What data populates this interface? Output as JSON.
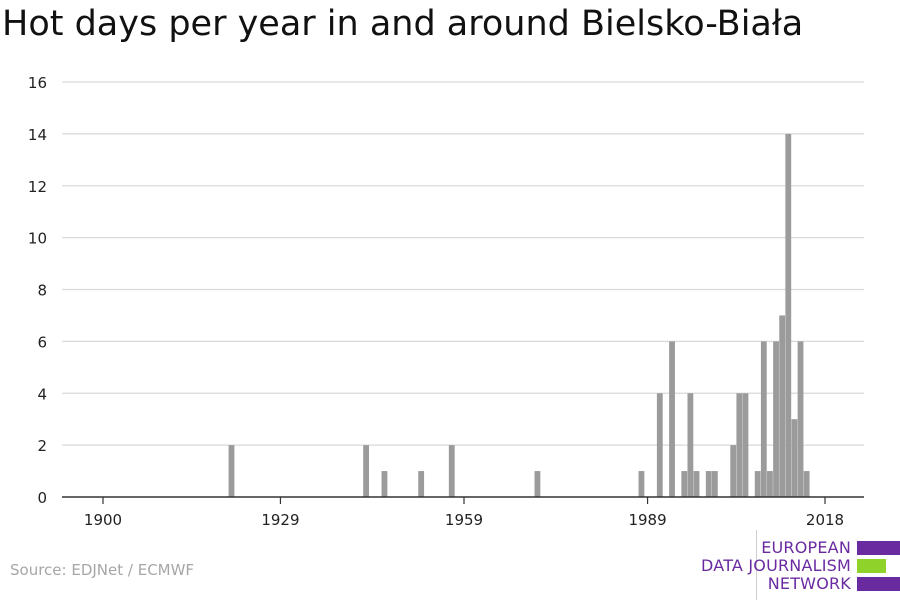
{
  "chart_data": {
    "type": "bar",
    "title": "Hot days per year in and around Bielsko-Biała",
    "xlabel": "",
    "ylabel": "",
    "xlim": [
      1900,
      2018
    ],
    "ylim": [
      0,
      16
    ],
    "xticks": [
      "1900",
      "1929",
      "1959",
      "1989",
      "2018"
    ],
    "yticks": [
      "0",
      "2",
      "4",
      "6",
      "8",
      "10",
      "12",
      "14",
      "16"
    ],
    "grid": "horizontal",
    "legend": "none",
    "bar_color": "#9b9b9b",
    "x": [
      1921,
      1943,
      1946,
      1952,
      1957,
      1971,
      1988,
      1991,
      1993,
      1995,
      1996,
      1997,
      1999,
      2000,
      2003,
      2004,
      2005,
      2007,
      2008,
      2009,
      2010,
      2011,
      2012,
      2013,
      2014,
      2015,
      2016
    ],
    "values": [
      2,
      2,
      1,
      1,
      2,
      1,
      1,
      4,
      6,
      1,
      4,
      1,
      1,
      1,
      2,
      4,
      4,
      1,
      6,
      1,
      6,
      7,
      14,
      3,
      6,
      1,
      0
    ]
  },
  "source": "Source: EDJNet / ECMWF",
  "logo": {
    "lines": [
      "EUROPEAN",
      "DATA JOURNALISM",
      "NETWORK"
    ],
    "colors": {
      "text": "#6a2aa0",
      "purple": "#6a2aa0",
      "green": "#8fd32a"
    }
  }
}
